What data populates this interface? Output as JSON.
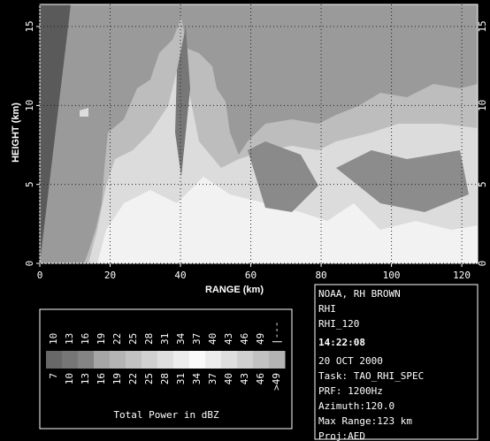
{
  "plot": {
    "xlabel": "RANGE (km)",
    "ylabel": "HEIGHT (km)",
    "xlim": [
      0,
      124.5
    ],
    "ylim": [
      0,
      16.4
    ],
    "xticks": [
      0,
      20,
      40,
      60,
      80,
      100,
      120
    ],
    "yticks": [
      0,
      5,
      10,
      15
    ]
  },
  "info": {
    "lines": [
      "NOAA, RH BROWN",
      "RHI",
      "RHI_120",
      "14:22:08",
      "20 OCT 2000",
      "Task: TAO_RHI_SPEC",
      "PRF: 1200Hz",
      "Azimuth:120.0",
      "Max Range:123 km",
      "Proj:AED"
    ]
  },
  "colorbar": {
    "title": "Total Power in dBZ",
    "upper": [
      "10",
      "13",
      "16",
      "19",
      "22",
      "25",
      "28",
      "31",
      "34",
      "37",
      "40",
      "43",
      "46",
      "49",
      "|---"
    ],
    "lower": [
      "7",
      "10",
      "13",
      "16",
      "19",
      "22",
      "25",
      "28",
      "31",
      "34",
      "37",
      "40",
      "43",
      "46",
      ">49"
    ]
  }
}
